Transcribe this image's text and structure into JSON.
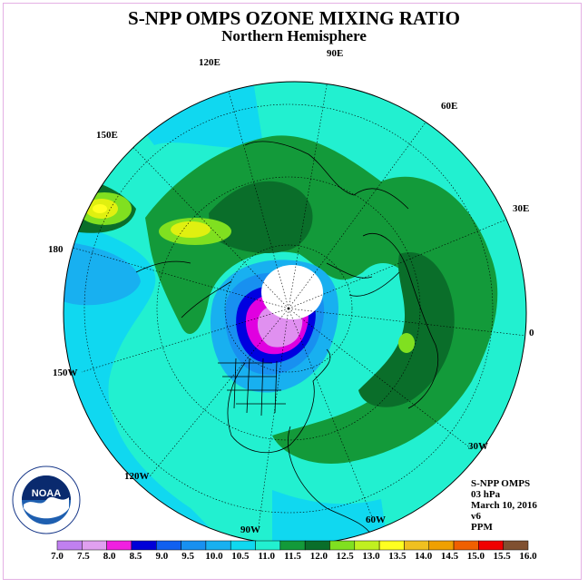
{
  "header": {
    "title": "S-NPP OMPS OZONE MIXING RATIO",
    "subtitle": "Northern Hemisphere"
  },
  "map": {
    "projection": "north-polar-stereographic",
    "lon_labels": [
      "90E",
      "60E",
      "30E",
      "0",
      "30W",
      "60W",
      "90W",
      "120W",
      "150W",
      "180",
      "150E",
      "120E"
    ],
    "colors": {
      "ocean_base": "#22f0d0",
      "level_10_5": "#10d8f0",
      "level_10_0": "#18b0f0",
      "level_9_5": "#1890f0",
      "level_9_0": "#1060f0",
      "level_8_5": "#0000e0",
      "level_8_0": "#e000e0",
      "level_7_5": "#e090f0",
      "level_11_5": "#139a3a",
      "level_12_0": "#0a6e2a",
      "level_12_5": "#80e020",
      "level_13_0": "#e0f010",
      "level_13_5": "#ffff20"
    }
  },
  "info": {
    "instrument": "S-NPP OMPS",
    "level": "03 hPa",
    "date": "March 10, 2016",
    "version": "v6",
    "units": "PPM"
  },
  "logo": {
    "text": "NOAA"
  },
  "colorbar": {
    "labels": [
      "7.0",
      "7.5",
      "8.0",
      "8.5",
      "9.0",
      "9.5",
      "10.0",
      "10.5",
      "11.0",
      "11.5",
      "12.0",
      "12.5",
      "13.0",
      "13.5",
      "14.0",
      "14.5",
      "15.0",
      "15.5",
      "16.0"
    ],
    "colors": [
      "#c080f0",
      "#e0a0f0",
      "#f020e0",
      "#0000d8",
      "#1060f0",
      "#1890f0",
      "#18b0f0",
      "#10d8f0",
      "#22f0d0",
      "#139a3a",
      "#0a6e2a",
      "#80e020",
      "#c0f020",
      "#ffff20",
      "#f0c020",
      "#f0a000",
      "#f06000",
      "#f00000",
      "#805030"
    ]
  }
}
